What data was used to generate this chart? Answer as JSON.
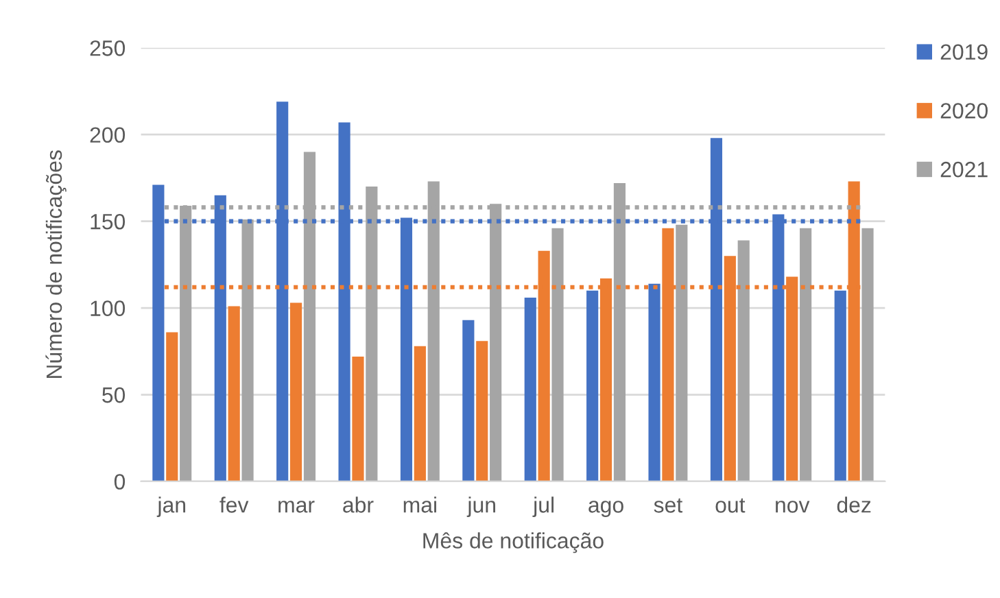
{
  "chart_data": {
    "type": "bar",
    "xlabel": "Mês de notificação",
    "ylabel": "Número de notificações",
    "categories": [
      "jan",
      "fev",
      "mar",
      "abr",
      "mai",
      "jun",
      "jul",
      "ago",
      "set",
      "out",
      "nov",
      "dez"
    ],
    "series": [
      {
        "name": "2019",
        "color": "#4472c4",
        "values": [
          171,
          165,
          219,
          207,
          152,
          93,
          106,
          110,
          114,
          198,
          154,
          110
        ]
      },
      {
        "name": "2020",
        "color": "#ed7d31",
        "values": [
          86,
          101,
          103,
          72,
          78,
          81,
          133,
          117,
          146,
          130,
          118,
          173
        ]
      },
      {
        "name": "2021",
        "color": "#a5a5a5",
        "values": [
          159,
          151,
          190,
          170,
          173,
          160,
          146,
          172,
          148,
          139,
          146,
          146
        ]
      }
    ],
    "ylim": [
      0,
      250
    ],
    "yticks": [
      0,
      50,
      100,
      150,
      200,
      250
    ],
    "grid": "y",
    "legend": "right",
    "ref_lines": [
      {
        "axis": "y",
        "value": 158,
        "color": "#a5a5a5",
        "line_style": "dotted"
      },
      {
        "axis": "y",
        "value": 150,
        "color": "#4472c4",
        "line_style": "dotted"
      },
      {
        "axis": "y",
        "value": 112,
        "color": "#ed7d31",
        "line_style": "dotted"
      }
    ]
  }
}
